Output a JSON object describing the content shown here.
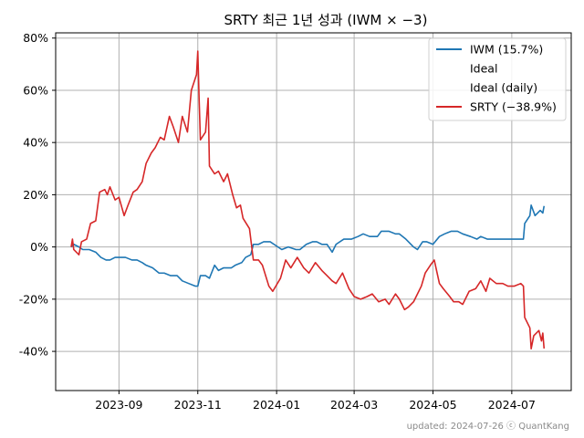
{
  "chart_data": {
    "type": "line",
    "title": "SRTY 최근 1년 성과 (IWM × −3)",
    "xlabel": "",
    "ylabel": "",
    "x_range": [
      "2023-07-14",
      "2024-08-16"
    ],
    "ylim": [
      -55,
      82
    ],
    "y_ticks": [
      -40,
      -20,
      0,
      20,
      40,
      60,
      80
    ],
    "y_tick_format": "percent",
    "x_ticks": [
      {
        "date": "2023-09-01",
        "label": "2023-09"
      },
      {
        "date": "2023-11-01",
        "label": "2023-11"
      },
      {
        "date": "2024-01-01",
        "label": "2024-01"
      },
      {
        "date": "2024-03-01",
        "label": "2024-03"
      },
      {
        "date": "2024-05-01",
        "label": "2024-05"
      },
      {
        "date": "2024-07-01",
        "label": "2024-07"
      }
    ],
    "grid": true,
    "legend_position": "top-right",
    "legend": [
      {
        "label": "IWM (15.7%)",
        "color": "#1f77b4",
        "line": true
      },
      {
        "label": "Ideal",
        "color": "#ffffff",
        "line": false
      },
      {
        "label": "Ideal (daily)",
        "color": "#ffffff",
        "line": false
      },
      {
        "label": "SRTY (−38.9%)",
        "color": "#d62728",
        "line": true
      }
    ],
    "series": [
      {
        "name": "IWM (15.7%)",
        "color": "#1f77b4",
        "points": [
          [
            "2023-07-26",
            0
          ],
          [
            "2023-07-28",
            1
          ],
          [
            "2023-08-01",
            0
          ],
          [
            "2023-08-04",
            -1
          ],
          [
            "2023-08-09",
            -1
          ],
          [
            "2023-08-14",
            -2
          ],
          [
            "2023-08-18",
            -4
          ],
          [
            "2023-08-22",
            -5
          ],
          [
            "2023-08-25",
            -5
          ],
          [
            "2023-08-29",
            -4
          ],
          [
            "2023-09-01",
            -4
          ],
          [
            "2023-09-06",
            -4
          ],
          [
            "2023-09-11",
            -5
          ],
          [
            "2023-09-15",
            -5
          ],
          [
            "2023-09-19",
            -6
          ],
          [
            "2023-09-22",
            -7
          ],
          [
            "2023-09-27",
            -8
          ],
          [
            "2023-10-02",
            -10
          ],
          [
            "2023-10-06",
            -10
          ],
          [
            "2023-10-11",
            -11
          ],
          [
            "2023-10-16",
            -11
          ],
          [
            "2023-10-20",
            -13
          ],
          [
            "2023-10-25",
            -14
          ],
          [
            "2023-10-30",
            -15
          ],
          [
            "2023-11-01",
            -15
          ],
          [
            "2023-11-03",
            -11
          ],
          [
            "2023-11-07",
            -11
          ],
          [
            "2023-11-10",
            -12
          ],
          [
            "2023-11-14",
            -7
          ],
          [
            "2023-11-17",
            -9
          ],
          [
            "2023-11-21",
            -8
          ],
          [
            "2023-11-27",
            -8
          ],
          [
            "2023-11-30",
            -7
          ],
          [
            "2023-12-05",
            -6
          ],
          [
            "2023-12-08",
            -4
          ],
          [
            "2023-12-12",
            -3
          ],
          [
            "2023-12-14",
            1
          ],
          [
            "2023-12-18",
            1
          ],
          [
            "2023-12-22",
            2
          ],
          [
            "2023-12-27",
            2
          ],
          [
            "2024-01-02",
            0
          ],
          [
            "2024-01-05",
            -1
          ],
          [
            "2024-01-10",
            0
          ],
          [
            "2024-01-16",
            -1
          ],
          [
            "2024-01-19",
            -1
          ],
          [
            "2024-01-24",
            1
          ],
          [
            "2024-01-29",
            2
          ],
          [
            "2024-02-01",
            2
          ],
          [
            "2024-02-05",
            1
          ],
          [
            "2024-02-09",
            1
          ],
          [
            "2024-02-13",
            -2
          ],
          [
            "2024-02-16",
            1
          ],
          [
            "2024-02-22",
            3
          ],
          [
            "2024-02-28",
            3
          ],
          [
            "2024-03-04",
            4
          ],
          [
            "2024-03-08",
            5
          ],
          [
            "2024-03-13",
            4
          ],
          [
            "2024-03-19",
            4
          ],
          [
            "2024-03-22",
            6
          ],
          [
            "2024-03-28",
            6
          ],
          [
            "2024-04-02",
            5
          ],
          [
            "2024-04-05",
            5
          ],
          [
            "2024-04-10",
            3
          ],
          [
            "2024-04-12",
            2
          ],
          [
            "2024-04-16",
            0
          ],
          [
            "2024-04-19",
            -1
          ],
          [
            "2024-04-23",
            2
          ],
          [
            "2024-04-26",
            2
          ],
          [
            "2024-05-01",
            1
          ],
          [
            "2024-05-06",
            4
          ],
          [
            "2024-05-10",
            5
          ],
          [
            "2024-05-15",
            6
          ],
          [
            "2024-05-20",
            6
          ],
          [
            "2024-05-24",
            5
          ],
          [
            "2024-05-30",
            4
          ],
          [
            "2024-06-04",
            3
          ],
          [
            "2024-06-07",
            4
          ],
          [
            "2024-06-12",
            3
          ],
          [
            "2024-06-18",
            3
          ],
          [
            "2024-06-24",
            3
          ],
          [
            "2024-06-28",
            3
          ],
          [
            "2024-07-05",
            3
          ],
          [
            "2024-07-10",
            3
          ],
          [
            "2024-07-11",
            9
          ],
          [
            "2024-07-15",
            12
          ],
          [
            "2024-07-16",
            16
          ],
          [
            "2024-07-19",
            12
          ],
          [
            "2024-07-23",
            14
          ],
          [
            "2024-07-25",
            13
          ],
          [
            "2024-07-26",
            15.7
          ]
        ]
      },
      {
        "name": "SRTY (−38.9%)",
        "color": "#d62728",
        "points": [
          [
            "2023-07-26",
            0
          ],
          [
            "2023-07-27",
            3
          ],
          [
            "2023-07-28",
            -1
          ],
          [
            "2023-08-01",
            -3
          ],
          [
            "2023-08-03",
            2
          ],
          [
            "2023-08-07",
            3
          ],
          [
            "2023-08-10",
            9
          ],
          [
            "2023-08-14",
            10
          ],
          [
            "2023-08-17",
            21
          ],
          [
            "2023-08-21",
            22
          ],
          [
            "2023-08-23",
            20
          ],
          [
            "2023-08-25",
            23
          ],
          [
            "2023-08-29",
            18
          ],
          [
            "2023-09-01",
            19
          ],
          [
            "2023-09-05",
            12
          ],
          [
            "2023-09-08",
            16
          ],
          [
            "2023-09-12",
            21
          ],
          [
            "2023-09-15",
            22
          ],
          [
            "2023-09-19",
            25
          ],
          [
            "2023-09-22",
            32
          ],
          [
            "2023-09-26",
            36
          ],
          [
            "2023-09-29",
            38
          ],
          [
            "2023-10-03",
            42
          ],
          [
            "2023-10-06",
            41
          ],
          [
            "2023-10-10",
            50
          ],
          [
            "2023-10-13",
            46
          ],
          [
            "2023-10-17",
            40
          ],
          [
            "2023-10-20",
            50
          ],
          [
            "2023-10-24",
            44
          ],
          [
            "2023-10-27",
            60
          ],
          [
            "2023-10-31",
            66
          ],
          [
            "2023-11-01",
            75
          ],
          [
            "2023-11-02",
            57
          ],
          [
            "2023-11-03",
            41
          ],
          [
            "2023-11-07",
            44
          ],
          [
            "2023-11-09",
            57
          ],
          [
            "2023-11-10",
            31
          ],
          [
            "2023-11-14",
            28
          ],
          [
            "2023-11-17",
            29
          ],
          [
            "2023-11-21",
            25
          ],
          [
            "2023-11-24",
            28
          ],
          [
            "2023-11-28",
            20
          ],
          [
            "2023-12-01",
            15
          ],
          [
            "2023-12-04",
            16
          ],
          [
            "2023-12-06",
            11
          ],
          [
            "2023-12-11",
            7
          ],
          [
            "2023-12-14",
            -5
          ],
          [
            "2023-12-18",
            -5
          ],
          [
            "2023-12-21",
            -7
          ],
          [
            "2023-12-26",
            -15
          ],
          [
            "2023-12-29",
            -17
          ],
          [
            "2024-01-04",
            -12
          ],
          [
            "2024-01-08",
            -5
          ],
          [
            "2024-01-12",
            -8
          ],
          [
            "2024-01-17",
            -4
          ],
          [
            "2024-01-22",
            -8
          ],
          [
            "2024-01-26",
            -10
          ],
          [
            "2024-01-31",
            -6
          ],
          [
            "2024-02-05",
            -9
          ],
          [
            "2024-02-09",
            -11
          ],
          [
            "2024-02-13",
            -13
          ],
          [
            "2024-02-16",
            -14
          ],
          [
            "2024-02-21",
            -10
          ],
          [
            "2024-02-26",
            -16
          ],
          [
            "2024-03-01",
            -19
          ],
          [
            "2024-03-06",
            -20
          ],
          [
            "2024-03-11",
            -19
          ],
          [
            "2024-03-15",
            -18
          ],
          [
            "2024-03-20",
            -21
          ],
          [
            "2024-03-25",
            -20
          ],
          [
            "2024-03-28",
            -22
          ],
          [
            "2024-04-02",
            -18
          ],
          [
            "2024-04-05",
            -20
          ],
          [
            "2024-04-09",
            -24
          ],
          [
            "2024-04-12",
            -23
          ],
          [
            "2024-04-16",
            -21
          ],
          [
            "2024-04-18",
            -19
          ],
          [
            "2024-04-22",
            -15
          ],
          [
            "2024-04-25",
            -10
          ],
          [
            "2024-04-29",
            -7
          ],
          [
            "2024-05-02",
            -5
          ],
          [
            "2024-05-06",
            -14
          ],
          [
            "2024-05-09",
            -16
          ],
          [
            "2024-05-14",
            -19
          ],
          [
            "2024-05-17",
            -21
          ],
          [
            "2024-05-21",
            -21
          ],
          [
            "2024-05-24",
            -22
          ],
          [
            "2024-05-29",
            -17
          ],
          [
            "2024-06-03",
            -16
          ],
          [
            "2024-06-07",
            -13
          ],
          [
            "2024-06-11",
            -17
          ],
          [
            "2024-06-14",
            -12
          ],
          [
            "2024-06-19",
            -14
          ],
          [
            "2024-06-24",
            -14
          ],
          [
            "2024-06-28",
            -15
          ],
          [
            "2024-07-03",
            -15
          ],
          [
            "2024-07-08",
            -14
          ],
          [
            "2024-07-10",
            -15
          ],
          [
            "2024-07-11",
            -27
          ],
          [
            "2024-07-15",
            -31
          ],
          [
            "2024-07-16",
            -39
          ],
          [
            "2024-07-18",
            -34
          ],
          [
            "2024-07-22",
            -32
          ],
          [
            "2024-07-24",
            -36
          ],
          [
            "2024-07-25",
            -33
          ],
          [
            "2024-07-26",
            -38.9
          ]
        ]
      }
    ]
  },
  "footer": {
    "text": "updated: 2024-07-26 ⓒ QuantKang"
  }
}
